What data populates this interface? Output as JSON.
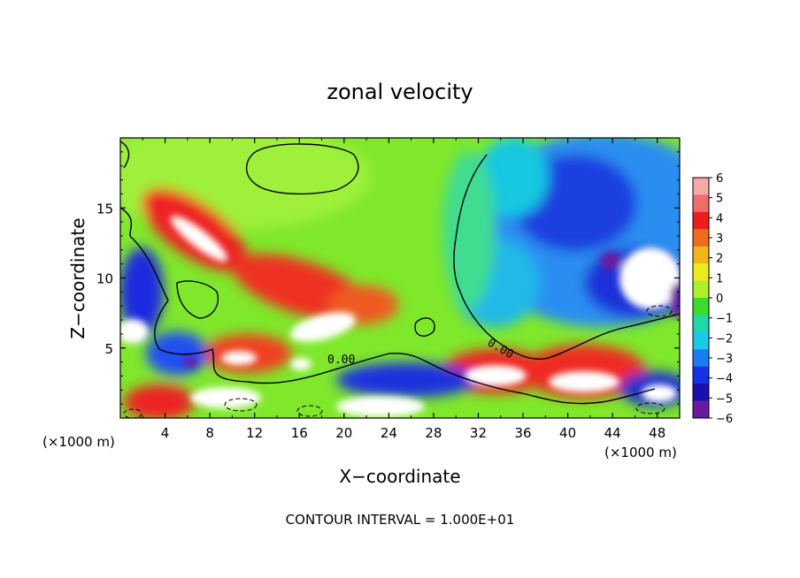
{
  "chart_data": {
    "type": "heatmap",
    "title": "zonal velocity",
    "xlabel": "X−coordinate",
    "ylabel": "Z−coordinate",
    "x_unit_left": "(×1000 m)",
    "x_unit_right": "(×1000 m)",
    "xlim": [
      0,
      50
    ],
    "ylim": [
      0,
      20
    ],
    "x_ticks": [
      4,
      8,
      12,
      16,
      20,
      24,
      28,
      32,
      36,
      40,
      44,
      48
    ],
    "y_ticks": [
      5,
      10,
      15
    ],
    "contour_labels": [
      "0.00",
      "0.00"
    ],
    "footer": "CONTOUR INTERVAL = 1.000E+01",
    "colorbar": {
      "labels": [
        "6",
        "5",
        "4",
        "3",
        "2",
        "1",
        "0",
        "−1",
        "−2",
        "−3",
        "−4",
        "−5",
        "−6"
      ],
      "colors": [
        "#f7a8a8",
        "#f26b6b",
        "#ee1c1c",
        "#f06a1e",
        "#f2b418",
        "#e8ec18",
        "#aef02a",
        "#3cdc2a",
        "#20d8a8",
        "#1ac8e8",
        "#1a7ef0",
        "#1432e8",
        "#1a10b0",
        "#6a1aa0"
      ],
      "range": [
        -6,
        6
      ]
    }
  }
}
